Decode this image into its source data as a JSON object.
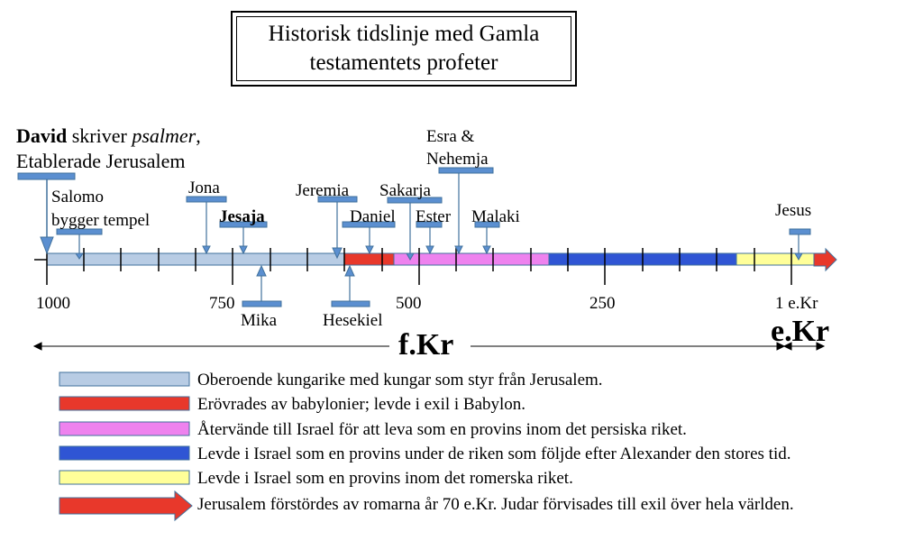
{
  "title": {
    "line1": "Historisk tidslinje med Gamla",
    "line2": "testamentets profeter"
  },
  "david": {
    "name": "David",
    "verb": " skriver ",
    "object": "psalmer",
    "comma": ",",
    "line2": "Etablerade Jerusalem"
  },
  "prophets": {
    "salomo_line1": "Salomo",
    "salomo_line2": "bygger tempel",
    "jona": "Jona",
    "jesaja": "Jesaja",
    "mika": "Mika",
    "jeremia": "Jeremia",
    "hesekiel": "Hesekiel",
    "daniel": "Daniel",
    "sakarja": "Sakarja",
    "ester": "Ester",
    "esra_line1": "Esra &",
    "esra_line2": "Nehemja",
    "malaki": "Malaki",
    "jesus": "Jesus"
  },
  "axis": {
    "tick_1000": "1000",
    "tick_750": "750",
    "tick_500": "500",
    "tick_250": "250",
    "tick_1": "1 e.Kr"
  },
  "eras": {
    "fkr": "f.Kr",
    "ekr": "e.Kr"
  },
  "legend": [
    {
      "label": "Oberoende kungarike med kungar som styr från Jerusalem.",
      "color": "#b8cce4"
    },
    {
      "label": "Erövrades av babylonier; levde i exil i Babylon.",
      "color": "#e8382b"
    },
    {
      "label": "Återvände till Israel för att leva som en provins inom det persiska riket.",
      "color": "#ee82ee"
    },
    {
      "label": "Levde i Israel som en provins under de riken som följde efter Alexander den stores tid.",
      "color": "#2f55d4"
    },
    {
      "label": "Levde i Israel som en provins inom det romerska riket.",
      "color": "#ffff99"
    },
    {
      "label": "Jerusalem förstördes av romarna år 70 e.Kr. Judar förvisades till exil över hela världen.",
      "color": "#e8382b"
    }
  ],
  "colors": {
    "marker": "#5b8fd0",
    "marker_stroke": "#41719c"
  }
}
